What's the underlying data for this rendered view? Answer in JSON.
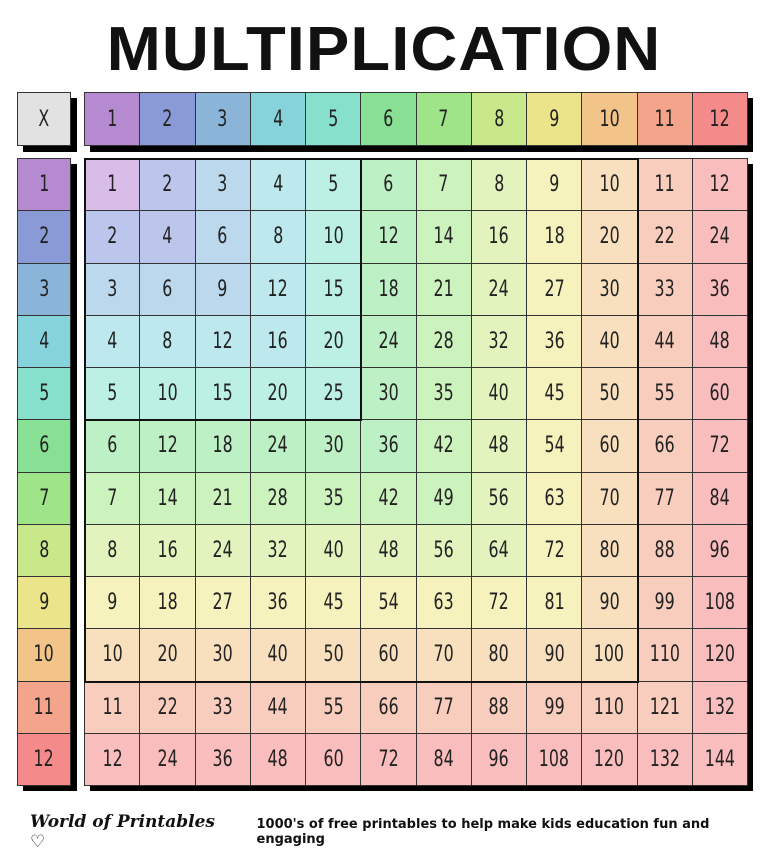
{
  "title": "MULTIPLICATION",
  "corner_label": "X",
  "headers": [
    "1",
    "2",
    "3",
    "4",
    "5",
    "6",
    "7",
    "8",
    "9",
    "10",
    "11",
    "12"
  ],
  "header_colors": [
    "#b58ad0",
    "#8a9ad6",
    "#8ab4d8",
    "#87d3dc",
    "#87e0cc",
    "#88e095",
    "#a0e48a",
    "#c8e88a",
    "#ece48a",
    "#f2c48a",
    "#f4a48a",
    "#f48a8a"
  ],
  "cell_colors": [
    "#d7bde8",
    "#bcc5ec",
    "#bcd8ec",
    "#bde9ee",
    "#bdf0e4",
    "#bdf0c4",
    "#ccf2bd",
    "#e2f3bd",
    "#f6f2bd",
    "#f8dfbd",
    "#f9cdbd",
    "#f9bdbd"
  ],
  "rows": [
    [
      "1",
      "2",
      "3",
      "4",
      "5",
      "6",
      "7",
      "8",
      "9",
      "10",
      "11",
      "12"
    ],
    [
      "2",
      "4",
      "6",
      "8",
      "10",
      "12",
      "14",
      "16",
      "18",
      "20",
      "22",
      "24"
    ],
    [
      "3",
      "6",
      "9",
      "12",
      "15",
      "18",
      "21",
      "24",
      "27",
      "30",
      "33",
      "36"
    ],
    [
      "4",
      "8",
      "12",
      "16",
      "20",
      "24",
      "28",
      "32",
      "36",
      "40",
      "44",
      "48"
    ],
    [
      "5",
      "10",
      "15",
      "20",
      "25",
      "30",
      "35",
      "40",
      "45",
      "50",
      "55",
      "60"
    ],
    [
      "6",
      "12",
      "18",
      "24",
      "30",
      "36",
      "42",
      "48",
      "54",
      "60",
      "66",
      "72"
    ],
    [
      "7",
      "14",
      "21",
      "28",
      "35",
      "42",
      "49",
      "56",
      "63",
      "70",
      "77",
      "84"
    ],
    [
      "8",
      "16",
      "24",
      "32",
      "40",
      "48",
      "56",
      "64",
      "72",
      "80",
      "88",
      "96"
    ],
    [
      "9",
      "18",
      "27",
      "36",
      "45",
      "54",
      "63",
      "72",
      "81",
      "90",
      "99",
      "108"
    ],
    [
      "10",
      "20",
      "30",
      "40",
      "50",
      "60",
      "70",
      "80",
      "90",
      "100",
      "110",
      "120"
    ],
    [
      "11",
      "22",
      "33",
      "44",
      "55",
      "66",
      "77",
      "88",
      "99",
      "110",
      "121",
      "132"
    ],
    [
      "12",
      "24",
      "36",
      "48",
      "60",
      "72",
      "84",
      "96",
      "108",
      "120",
      "132",
      "144"
    ]
  ],
  "footer": {
    "brand": "World of Printables ♡",
    "tagline": "1000's of free printables to help make kids education fun and engaging"
  }
}
